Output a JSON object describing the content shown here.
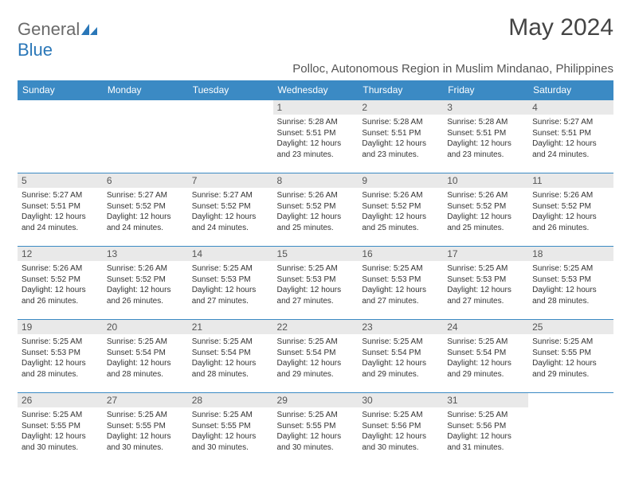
{
  "logo": {
    "text1": "General",
    "text2": "Blue"
  },
  "title": "May 2024",
  "subtitle": "Polloc, Autonomous Region in Muslim Mindanao, Philippines",
  "colors": {
    "header_bg": "#3b8ac4",
    "header_text": "#ffffff",
    "daynum_bg": "#e9e9e9",
    "border": "#3b8ac4",
    "logo_gray": "#6a6a6a",
    "logo_blue": "#2a77b8"
  },
  "weekdays": [
    "Sunday",
    "Monday",
    "Tuesday",
    "Wednesday",
    "Thursday",
    "Friday",
    "Saturday"
  ],
  "weeks": [
    [
      null,
      null,
      null,
      {
        "n": "1",
        "sr": "Sunrise: 5:28 AM",
        "ss": "Sunset: 5:51 PM",
        "dl": "Daylight: 12 hours and 23 minutes."
      },
      {
        "n": "2",
        "sr": "Sunrise: 5:28 AM",
        "ss": "Sunset: 5:51 PM",
        "dl": "Daylight: 12 hours and 23 minutes."
      },
      {
        "n": "3",
        "sr": "Sunrise: 5:28 AM",
        "ss": "Sunset: 5:51 PM",
        "dl": "Daylight: 12 hours and 23 minutes."
      },
      {
        "n": "4",
        "sr": "Sunrise: 5:27 AM",
        "ss": "Sunset: 5:51 PM",
        "dl": "Daylight: 12 hours and 24 minutes."
      }
    ],
    [
      {
        "n": "5",
        "sr": "Sunrise: 5:27 AM",
        "ss": "Sunset: 5:51 PM",
        "dl": "Daylight: 12 hours and 24 minutes."
      },
      {
        "n": "6",
        "sr": "Sunrise: 5:27 AM",
        "ss": "Sunset: 5:52 PM",
        "dl": "Daylight: 12 hours and 24 minutes."
      },
      {
        "n": "7",
        "sr": "Sunrise: 5:27 AM",
        "ss": "Sunset: 5:52 PM",
        "dl": "Daylight: 12 hours and 24 minutes."
      },
      {
        "n": "8",
        "sr": "Sunrise: 5:26 AM",
        "ss": "Sunset: 5:52 PM",
        "dl": "Daylight: 12 hours and 25 minutes."
      },
      {
        "n": "9",
        "sr": "Sunrise: 5:26 AM",
        "ss": "Sunset: 5:52 PM",
        "dl": "Daylight: 12 hours and 25 minutes."
      },
      {
        "n": "10",
        "sr": "Sunrise: 5:26 AM",
        "ss": "Sunset: 5:52 PM",
        "dl": "Daylight: 12 hours and 25 minutes."
      },
      {
        "n": "11",
        "sr": "Sunrise: 5:26 AM",
        "ss": "Sunset: 5:52 PM",
        "dl": "Daylight: 12 hours and 26 minutes."
      }
    ],
    [
      {
        "n": "12",
        "sr": "Sunrise: 5:26 AM",
        "ss": "Sunset: 5:52 PM",
        "dl": "Daylight: 12 hours and 26 minutes."
      },
      {
        "n": "13",
        "sr": "Sunrise: 5:26 AM",
        "ss": "Sunset: 5:52 PM",
        "dl": "Daylight: 12 hours and 26 minutes."
      },
      {
        "n": "14",
        "sr": "Sunrise: 5:25 AM",
        "ss": "Sunset: 5:53 PM",
        "dl": "Daylight: 12 hours and 27 minutes."
      },
      {
        "n": "15",
        "sr": "Sunrise: 5:25 AM",
        "ss": "Sunset: 5:53 PM",
        "dl": "Daylight: 12 hours and 27 minutes."
      },
      {
        "n": "16",
        "sr": "Sunrise: 5:25 AM",
        "ss": "Sunset: 5:53 PM",
        "dl": "Daylight: 12 hours and 27 minutes."
      },
      {
        "n": "17",
        "sr": "Sunrise: 5:25 AM",
        "ss": "Sunset: 5:53 PM",
        "dl": "Daylight: 12 hours and 27 minutes."
      },
      {
        "n": "18",
        "sr": "Sunrise: 5:25 AM",
        "ss": "Sunset: 5:53 PM",
        "dl": "Daylight: 12 hours and 28 minutes."
      }
    ],
    [
      {
        "n": "19",
        "sr": "Sunrise: 5:25 AM",
        "ss": "Sunset: 5:53 PM",
        "dl": "Daylight: 12 hours and 28 minutes."
      },
      {
        "n": "20",
        "sr": "Sunrise: 5:25 AM",
        "ss": "Sunset: 5:54 PM",
        "dl": "Daylight: 12 hours and 28 minutes."
      },
      {
        "n": "21",
        "sr": "Sunrise: 5:25 AM",
        "ss": "Sunset: 5:54 PM",
        "dl": "Daylight: 12 hours and 28 minutes."
      },
      {
        "n": "22",
        "sr": "Sunrise: 5:25 AM",
        "ss": "Sunset: 5:54 PM",
        "dl": "Daylight: 12 hours and 29 minutes."
      },
      {
        "n": "23",
        "sr": "Sunrise: 5:25 AM",
        "ss": "Sunset: 5:54 PM",
        "dl": "Daylight: 12 hours and 29 minutes."
      },
      {
        "n": "24",
        "sr": "Sunrise: 5:25 AM",
        "ss": "Sunset: 5:54 PM",
        "dl": "Daylight: 12 hours and 29 minutes."
      },
      {
        "n": "25",
        "sr": "Sunrise: 5:25 AM",
        "ss": "Sunset: 5:55 PM",
        "dl": "Daylight: 12 hours and 29 minutes."
      }
    ],
    [
      {
        "n": "26",
        "sr": "Sunrise: 5:25 AM",
        "ss": "Sunset: 5:55 PM",
        "dl": "Daylight: 12 hours and 30 minutes."
      },
      {
        "n": "27",
        "sr": "Sunrise: 5:25 AM",
        "ss": "Sunset: 5:55 PM",
        "dl": "Daylight: 12 hours and 30 minutes."
      },
      {
        "n": "28",
        "sr": "Sunrise: 5:25 AM",
        "ss": "Sunset: 5:55 PM",
        "dl": "Daylight: 12 hours and 30 minutes."
      },
      {
        "n": "29",
        "sr": "Sunrise: 5:25 AM",
        "ss": "Sunset: 5:55 PM",
        "dl": "Daylight: 12 hours and 30 minutes."
      },
      {
        "n": "30",
        "sr": "Sunrise: 5:25 AM",
        "ss": "Sunset: 5:56 PM",
        "dl": "Daylight: 12 hours and 30 minutes."
      },
      {
        "n": "31",
        "sr": "Sunrise: 5:25 AM",
        "ss": "Sunset: 5:56 PM",
        "dl": "Daylight: 12 hours and 31 minutes."
      },
      null
    ]
  ]
}
